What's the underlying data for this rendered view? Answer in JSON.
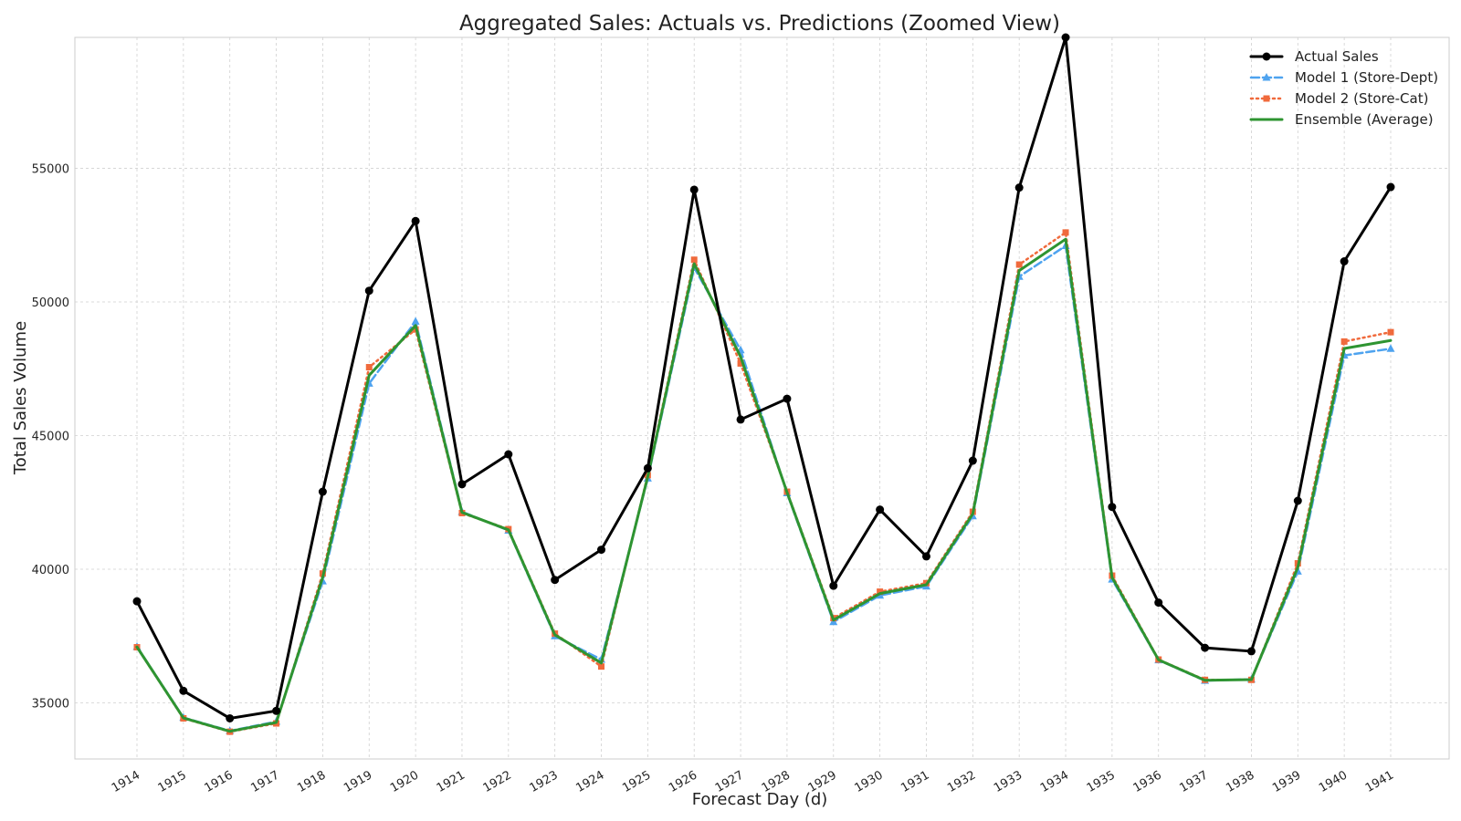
{
  "chart_data": {
    "type": "line",
    "title": "Aggregated Sales: Actuals vs. Predictions (Zoomed View)",
    "xlabel": "Forecast Day (d)",
    "ylabel": "Total Sales Volume",
    "categories": [
      "1914",
      "1915",
      "1916",
      "1917",
      "1918",
      "1919",
      "1920",
      "1921",
      "1922",
      "1923",
      "1924",
      "1925",
      "1926",
      "1927",
      "1928",
      "1929",
      "1930",
      "1931",
      "1932",
      "1933",
      "1934",
      "1935",
      "1936",
      "1937",
      "1938",
      "1939",
      "1940",
      "1941"
    ],
    "yticks": [
      35000,
      40000,
      45000,
      50000,
      55000
    ],
    "ylim": [
      32900,
      59900
    ],
    "grid": true,
    "legend_position": "top-right",
    "series": [
      {
        "name": "Actual Sales",
        "color": "#000000",
        "style": "solid",
        "marker": "circle",
        "values": [
          38800,
          35450,
          34420,
          34700,
          42900,
          50420,
          53030,
          43180,
          44300,
          39600,
          40730,
          43780,
          54200,
          45600,
          46380,
          39380,
          42230,
          40480,
          44060,
          54280,
          59900,
          42330,
          38750,
          37060,
          36930,
          42560,
          51520,
          54300
        ]
      },
      {
        "name": "Model 1 (Store-Dept)",
        "color": "#4ea3ef",
        "style": "dashed",
        "marker": "triangle",
        "values": [
          37100,
          34450,
          33950,
          34300,
          39550,
          46950,
          49270,
          42150,
          41450,
          37500,
          36620,
          43400,
          51280,
          48200,
          42850,
          38030,
          39020,
          39360,
          41990,
          50950,
          52100,
          39620,
          36600,
          35830,
          35880,
          39920,
          48000,
          48250
        ]
      },
      {
        "name": "Model 2 (Store-Cat)",
        "color": "#f06a3c",
        "style": "dotted",
        "marker": "square",
        "values": [
          37080,
          34420,
          33920,
          34230,
          39840,
          47560,
          48970,
          42100,
          41500,
          37590,
          36360,
          43520,
          51580,
          47700,
          42900,
          38170,
          39160,
          39480,
          42150,
          51400,
          52600,
          39760,
          36620,
          35860,
          35860,
          40220,
          48520,
          48870
        ]
      },
      {
        "name": "Ensemble (Average)",
        "color": "#2e9431",
        "style": "solid",
        "marker": "none",
        "values": [
          37090,
          34435,
          33935,
          34265,
          39695,
          47255,
          49120,
          42125,
          41475,
          37545,
          36490,
          43460,
          51430,
          47950,
          42875,
          38100,
          39090,
          39420,
          42070,
          51175,
          52350,
          39690,
          36610,
          35845,
          35870,
          40070,
          48260,
          48560
        ]
      }
    ]
  }
}
